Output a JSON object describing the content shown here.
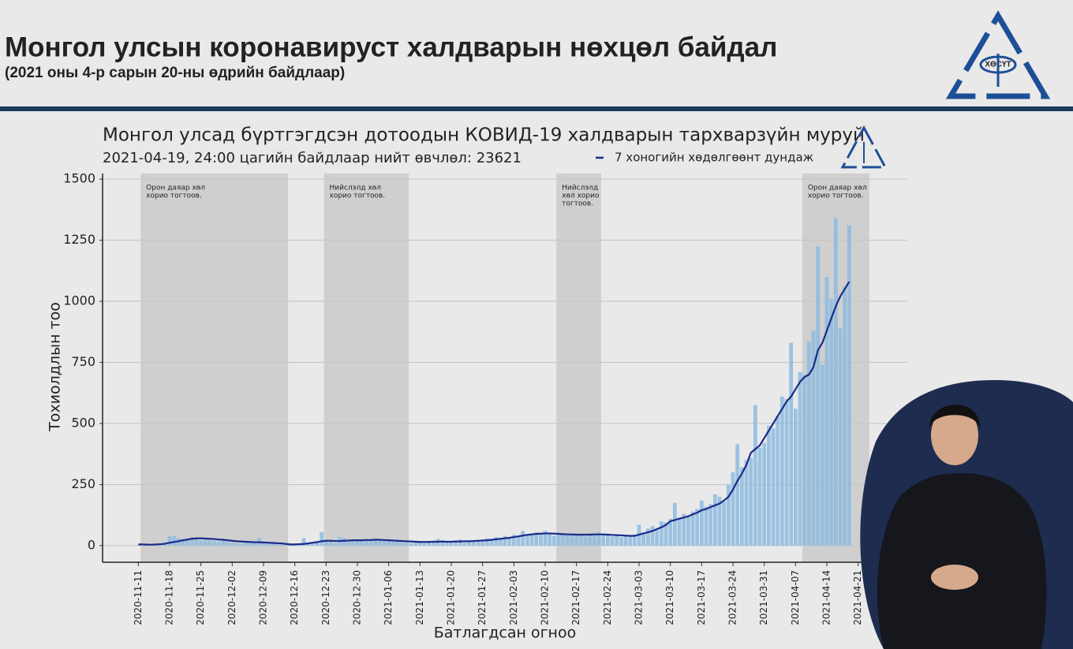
{
  "header": {
    "title": "Монгол улсын коронавируст халдварын нөхцөл байдал",
    "subtitle": "(2021 оны 4-р сарын 20-ны өдрийн байдлаар)",
    "logo_text": "ХӨСҮТ"
  },
  "chart_data": {
    "type": "bar",
    "title": "Монгол улсад бүртгэгдсэн дотоодын КОВИД-19 халдварын тархварзүйн муруй",
    "subtitle": "2021-04-19, 24:00 цагийн байдлаар нийт өвчлөл: 23621",
    "x_label": "Батлагдсан огноо",
    "y_label": "Тохиолдлын тоо",
    "x": [
      "2020-11-11",
      "2020-11-12",
      "2020-11-13",
      "2020-11-14",
      "2020-11-15",
      "2020-11-16",
      "2020-11-17",
      "2020-11-18",
      "2020-11-19",
      "2020-11-20",
      "2020-11-21",
      "2020-11-22",
      "2020-11-23",
      "2020-11-24",
      "2020-11-25",
      "2020-11-26",
      "2020-11-27",
      "2020-11-28",
      "2020-11-29",
      "2020-11-30",
      "2020-12-01",
      "2020-12-02",
      "2020-12-03",
      "2020-12-04",
      "2020-12-05",
      "2020-12-06",
      "2020-12-07",
      "2020-12-08",
      "2020-12-09",
      "2020-12-10",
      "2020-12-11",
      "2020-12-12",
      "2020-12-13",
      "2020-12-14",
      "2020-12-15",
      "2020-12-16",
      "2020-12-17",
      "2020-12-18",
      "2020-12-19",
      "2020-12-20",
      "2020-12-21",
      "2020-12-22",
      "2020-12-23",
      "2020-12-24",
      "2020-12-25",
      "2020-12-26",
      "2020-12-27",
      "2020-12-28",
      "2020-12-29",
      "2020-12-30",
      "2020-12-31",
      "2021-01-01",
      "2021-01-02",
      "2021-01-03",
      "2021-01-04",
      "2021-01-05",
      "2021-01-06",
      "2021-01-07",
      "2021-01-08",
      "2021-01-09",
      "2021-01-10",
      "2021-01-11",
      "2021-01-12",
      "2021-01-13",
      "2021-01-14",
      "2021-01-15",
      "2021-01-16",
      "2021-01-17",
      "2021-01-18",
      "2021-01-19",
      "2021-01-20",
      "2021-01-21",
      "2021-01-22",
      "2021-01-23",
      "2021-01-24",
      "2021-01-25",
      "2021-01-26",
      "2021-01-27",
      "2021-01-28",
      "2021-01-29",
      "2021-01-30",
      "2021-01-31",
      "2021-02-01",
      "2021-02-02",
      "2021-02-03",
      "2021-02-04",
      "2021-02-05",
      "2021-02-06",
      "2021-02-07",
      "2021-02-08",
      "2021-02-09",
      "2021-02-10",
      "2021-02-11",
      "2021-02-12",
      "2021-02-13",
      "2021-02-14",
      "2021-02-15",
      "2021-02-16",
      "2021-02-17",
      "2021-02-18",
      "2021-02-19",
      "2021-02-20",
      "2021-02-21",
      "2021-02-22",
      "2021-02-23",
      "2021-02-24",
      "2021-02-25",
      "2021-02-26",
      "2021-02-27",
      "2021-02-28",
      "2021-03-01",
      "2021-03-02",
      "2021-03-03",
      "2021-03-04",
      "2021-03-05",
      "2021-03-06",
      "2021-03-07",
      "2021-03-08",
      "2021-03-09",
      "2021-03-10",
      "2021-03-11",
      "2021-03-12",
      "2021-03-13",
      "2021-03-14",
      "2021-03-15",
      "2021-03-16",
      "2021-03-17",
      "2021-03-18",
      "2021-03-19",
      "2021-03-20",
      "2021-03-21",
      "2021-03-22",
      "2021-03-23",
      "2021-03-24",
      "2021-03-25",
      "2021-03-26",
      "2021-03-27",
      "2021-03-28",
      "2021-03-29",
      "2021-03-30",
      "2021-03-31",
      "2021-04-01",
      "2021-04-02",
      "2021-04-03",
      "2021-04-04",
      "2021-04-05",
      "2021-04-06",
      "2021-04-07",
      "2021-04-08",
      "2021-04-09",
      "2021-04-10",
      "2021-04-11",
      "2021-04-12",
      "2021-04-13",
      "2021-04-14",
      "2021-04-15",
      "2021-04-16",
      "2021-04-17",
      "2021-04-18",
      "2021-04-19"
    ],
    "series": [
      {
        "type": "bar",
        "color": "#8dbbe0",
        "values": [
          1,
          0,
          2,
          3,
          5,
          8,
          12,
          38,
          40,
          30,
          25,
          30,
          35,
          28,
          20,
          25,
          22,
          18,
          15,
          20,
          15,
          12,
          10,
          8,
          15,
          12,
          10,
          32,
          10,
          12,
          8,
          5,
          3,
          2,
          5,
          4,
          8,
          30,
          10,
          15,
          20,
          55,
          20,
          15,
          10,
          35,
          30,
          20,
          18,
          22,
          25,
          28,
          20,
          30,
          25,
          22,
          25,
          20,
          18,
          15,
          12,
          10,
          15,
          12,
          10,
          15,
          18,
          28,
          15,
          12,
          18,
          15,
          25,
          12,
          20,
          22,
          18,
          25,
          30,
          22,
          35,
          28,
          40,
          35,
          45,
          38,
          60,
          42,
          50,
          55,
          45,
          60,
          52,
          40,
          55,
          48,
          42,
          50,
          45,
          40,
          38,
          50,
          42,
          55,
          48,
          42,
          38,
          40,
          35,
          40,
          38,
          45,
          85,
          50,
          70,
          80,
          65,
          100,
          95,
          110,
          175,
          115,
          130,
          120,
          140,
          150,
          185,
          160,
          170,
          210,
          200,
          180,
          250,
          300,
          415,
          320,
          350,
          360,
          575,
          400,
          420,
          490,
          480,
          530,
          610,
          600,
          830,
          560,
          710,
          700,
          835,
          880,
          1225,
          740,
          1100,
          1010,
          1340,
          890,
          1060,
          1310
        ]
      },
      {
        "type": "line",
        "name": "7 хоногийн хөдөлгөөнт дундаж",
        "color": "#1a2a88",
        "values": [
          5,
          5,
          4,
          4,
          5,
          6,
          8,
          12,
          15,
          18,
          22,
          25,
          28,
          30,
          30,
          29,
          28,
          27,
          25,
          24,
          22,
          20,
          18,
          17,
          16,
          15,
          14,
          14,
          13,
          12,
          11,
          10,
          9,
          7,
          5,
          5,
          6,
          7,
          9,
          12,
          14,
          18,
          20,
          20,
          19,
          19,
          20,
          21,
          22,
          22,
          22,
          23,
          23,
          24,
          24,
          23,
          22,
          21,
          20,
          19,
          18,
          17,
          16,
          15,
          15,
          15,
          16,
          16,
          17,
          16,
          16,
          17,
          17,
          18,
          18,
          19,
          20,
          21,
          22,
          24,
          26,
          28,
          30,
          32,
          35,
          38,
          41,
          44,
          46,
          48,
          49,
          50,
          50,
          49,
          48,
          47,
          46,
          46,
          45,
          45,
          45,
          45,
          46,
          46,
          46,
          45,
          44,
          43,
          42,
          41,
          40,
          40,
          45,
          50,
          55,
          60,
          68,
          75,
          85,
          100,
          105,
          110,
          115,
          120,
          128,
          135,
          145,
          150,
          158,
          165,
          172,
          185,
          200,
          230,
          265,
          295,
          330,
          380,
          395,
          410,
          440,
          470,
          500,
          530,
          560,
          590,
          610,
          640,
          670,
          690,
          700,
          730,
          800,
          830,
          880,
          930,
          980,
          1020,
          1050,
          1080
        ]
      }
    ],
    "shaded_regions": [
      {
        "start": "2020-11-11",
        "end": "2020-12-14",
        "label": [
          "Орон даяар хөл",
          "хорио тогтоов."
        ]
      },
      {
        "start": "2020-12-22",
        "end": "2021-01-10",
        "label": [
          "Нийслэлд хөл",
          "хорио тогтоов."
        ]
      },
      {
        "start": "2021-02-12",
        "end": "2021-02-22",
        "label": [
          "Нийслэлд",
          "хөл хорио",
          "тогтоов."
        ]
      },
      {
        "start": "2021-04-08",
        "end": "2021-04-23",
        "label": [
          "Орон даяар хөл",
          "хорио тогтоов."
        ]
      }
    ],
    "xlim": [
      "2020-11-03",
      "2021-05-02"
    ],
    "xticks": [
      "2020-11-11",
      "2020-11-18",
      "2020-11-25",
      "2020-12-02",
      "2020-12-09",
      "2020-12-16",
      "2020-12-23",
      "2020-12-30",
      "2021-01-06",
      "2021-01-13",
      "2021-01-20",
      "2021-01-27",
      "2021-02-03",
      "2021-02-10",
      "2021-02-17",
      "2021-02-24",
      "2021-03-03",
      "2021-03-10",
      "2021-03-17",
      "2021-03-24",
      "2021-03-31",
      "2021-04-07",
      "2021-04-14",
      "2021-04-21"
    ],
    "ylim": [
      -68,
      1523
    ],
    "yticks": [
      0,
      250,
      500,
      750,
      1000,
      1250,
      1500
    ],
    "grid": true,
    "legend": "top"
  }
}
